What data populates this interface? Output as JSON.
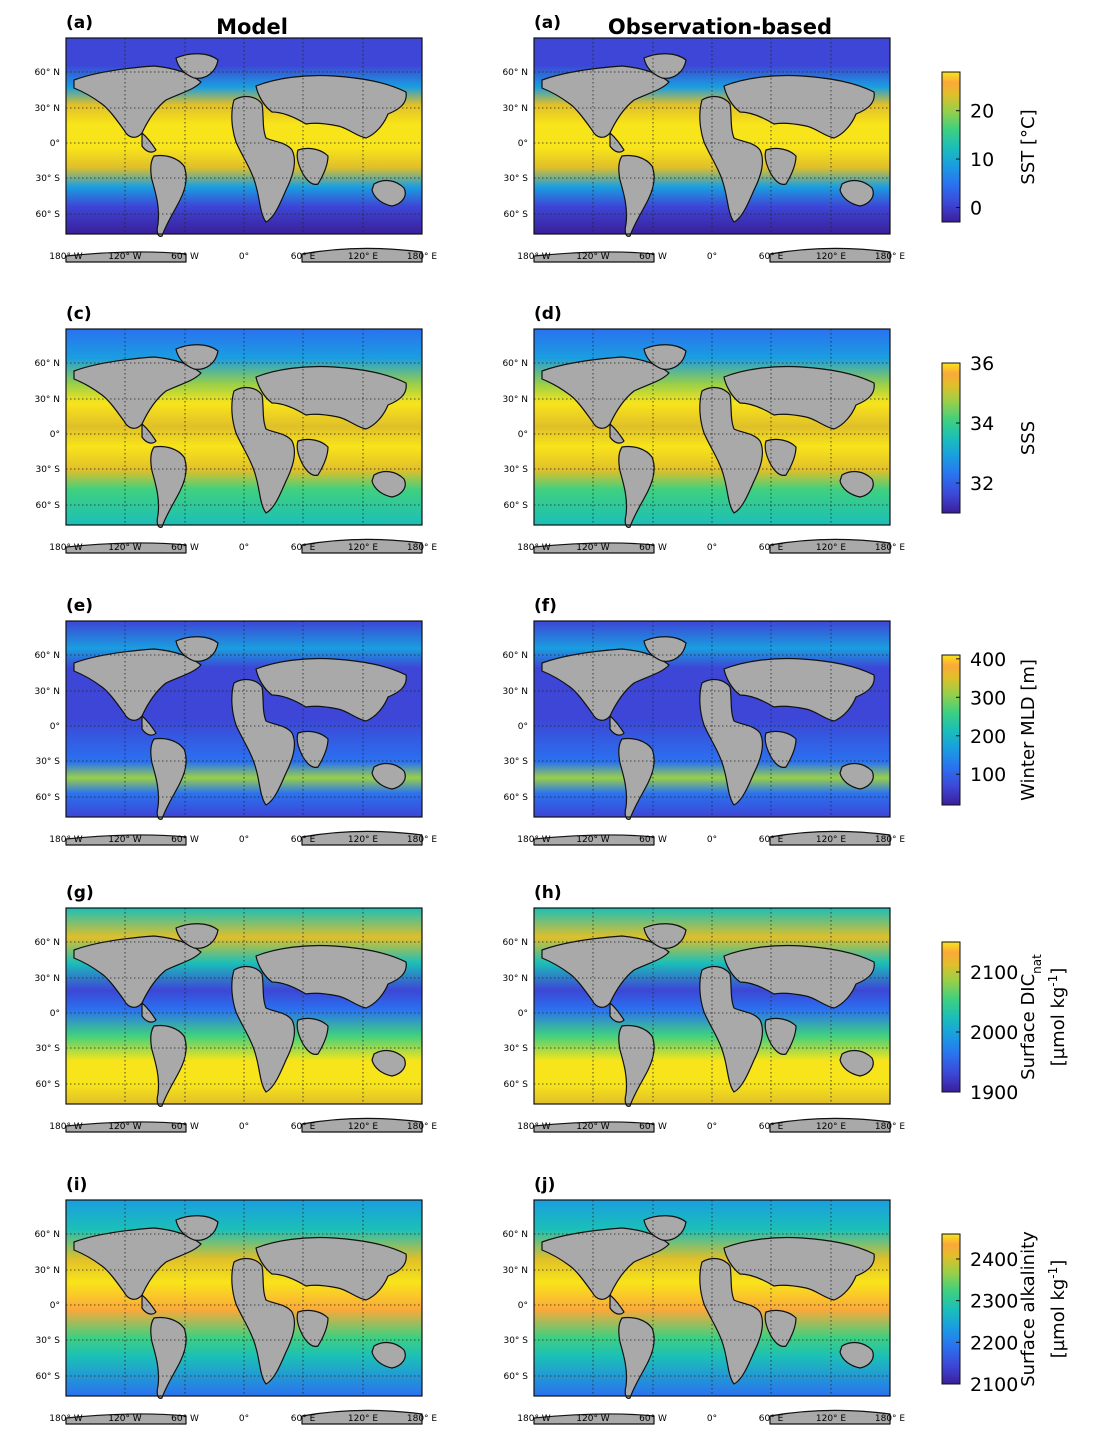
{
  "column_titles": {
    "model": "Model",
    "obs": "Observation-based"
  },
  "lat_labels": [
    "60° N",
    "30° N",
    "0°",
    "30° S",
    "60° S"
  ],
  "lon_labels": [
    "180° W",
    "120° W",
    "60° W",
    "0°",
    "60° E",
    "120° E",
    "180° E"
  ],
  "colors": {
    "land": "#a9a9a9",
    "gridline": "#222222",
    "colormap": [
      "#3a1f9a",
      "#3d46d6",
      "#2a72f0",
      "#1a9ee0",
      "#1bbfb8",
      "#3fd080",
      "#98cf4a",
      "#e0bf2a",
      "#fba93a",
      "#f8e41a"
    ]
  },
  "rows": [
    {
      "model_label": "(a)",
      "obs_label": "(a)",
      "variable": "SST",
      "colorbar": {
        "title": "SST [°C]",
        "subtitle": "",
        "min": -3,
        "max": 28,
        "ticks": [
          "20",
          "10",
          "0"
        ],
        "tick_values": [
          20,
          10,
          0
        ]
      }
    },
    {
      "model_label": "(c)",
      "obs_label": "(d)",
      "variable": "SSS",
      "colorbar": {
        "title": "SSS",
        "subtitle": "",
        "min": 31,
        "max": 36,
        "ticks": [
          "36",
          "34",
          "32"
        ],
        "tick_values": [
          36,
          34,
          32
        ]
      }
    },
    {
      "model_label": "(e)",
      "obs_label": "(f)",
      "variable": "MLD",
      "colorbar": {
        "title": "Winter MLD [m]",
        "subtitle": "",
        "min": 20,
        "max": 410,
        "ticks": [
          "400",
          "300",
          "200",
          "100"
        ],
        "tick_values": [
          400,
          300,
          200,
          100
        ]
      }
    },
    {
      "model_label": "(g)",
      "obs_label": "(h)",
      "variable": "DIC",
      "colorbar": {
        "title": "Surface DIC",
        "title_sub": "nat",
        "subtitle": "[µmol kg",
        "subtitle_sup": "-1",
        "subtitle_end": "]",
        "min": 1900,
        "max": 2150,
        "ticks": [
          "2100",
          "2000",
          "1900"
        ],
        "tick_values": [
          2100,
          2000,
          1900
        ]
      }
    },
    {
      "model_label": "(i)",
      "obs_label": "(j)",
      "variable": "ALK",
      "colorbar": {
        "title": "Surface alkalinity",
        "subtitle": "[µmol kg",
        "subtitle_sup": "-1",
        "subtitle_end": "]",
        "min": 2100,
        "max": 2460,
        "ticks": [
          "2400",
          "2300",
          "2200",
          "2100"
        ],
        "tick_values": [
          2400,
          2300,
          2200,
          2100
        ]
      }
    }
  ]
}
